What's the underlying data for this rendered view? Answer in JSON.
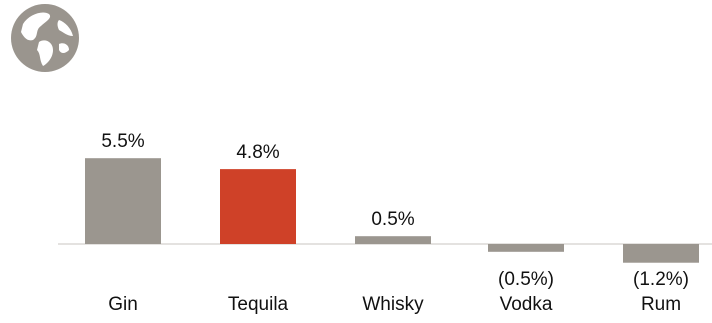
{
  "logo": {
    "icon": "globe-icon",
    "color": "#9a958e"
  },
  "chart_data": {
    "type": "bar",
    "categories": [
      "Gin",
      "Tequila",
      "Whisky",
      "Vodka",
      "Rum"
    ],
    "values": [
      5.5,
      4.8,
      0.5,
      -0.5,
      -1.2
    ],
    "data_labels": [
      "5.5%",
      "4.8%",
      "0.5%",
      "(0.5%)",
      "(1.2%)"
    ],
    "highlight_category": "Tequila",
    "colors": {
      "default": "#9b968f",
      "highlight": "#cf4128",
      "axis": "#c9c6c1"
    },
    "title": "",
    "xlabel": "",
    "ylabel": "",
    "grid": false,
    "legend": "none"
  }
}
